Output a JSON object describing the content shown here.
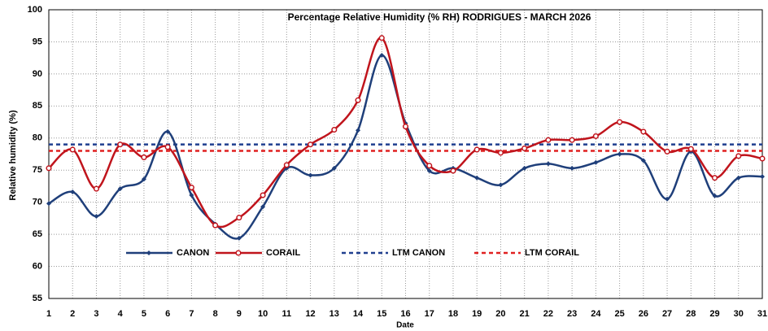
{
  "chart_data": {
    "type": "line",
    "title": "Percentage Relative Humidity (% RH) RODRIGUES - MARCH 2026",
    "x_label": "Date",
    "y_label": "Relative humidity (%)",
    "x": [
      1,
      2,
      3,
      4,
      5,
      6,
      7,
      8,
      9,
      10,
      11,
      12,
      13,
      14,
      15,
      16,
      17,
      18,
      19,
      20,
      21,
      22,
      23,
      24,
      25,
      26,
      27,
      28,
      29,
      30,
      31
    ],
    "series": [
      {
        "name": "CANON",
        "color": "#1f3f7a",
        "values": [
          69.8,
          71.6,
          67.8,
          72.1,
          73.6,
          81.0,
          71.1,
          66.6,
          64.4,
          69.3,
          75.3,
          74.2,
          75.3,
          81.2,
          92.9,
          82.3,
          74.9,
          75.3,
          73.8,
          72.7,
          75.3,
          76.0,
          75.3,
          76.2,
          77.5,
          76.5,
          70.5,
          77.9,
          71.0,
          73.8,
          74.0
        ]
      },
      {
        "name": "CORAIL",
        "color": "#c0141c",
        "values": [
          75.3,
          78.2,
          72.1,
          79.0,
          77.0,
          78.6,
          72.3,
          66.4,
          67.6,
          71.1,
          75.8,
          79.0,
          81.3,
          85.9,
          95.6,
          81.8,
          75.7,
          74.9,
          78.2,
          77.7,
          78.4,
          79.7,
          79.7,
          80.3,
          82.5,
          81.0,
          77.9,
          78.3,
          73.8,
          77.2,
          76.8
        ]
      }
    ],
    "reference_lines": [
      {
        "name": "LTM CANON",
        "color": "#1f3f8f",
        "value": 79
      },
      {
        "name": "LTM CORAIL",
        "color": "#e02020",
        "value": 78
      }
    ],
    "xlim": [
      1,
      31
    ],
    "xticks": [
      1,
      2,
      3,
      4,
      5,
      6,
      7,
      8,
      9,
      10,
      11,
      12,
      13,
      14,
      15,
      16,
      17,
      18,
      19,
      20,
      21,
      22,
      23,
      24,
      25,
      26,
      27,
      28,
      29,
      30,
      31
    ],
    "ylim": [
      55,
      100
    ],
    "yticks": [
      55,
      60,
      65,
      70,
      75,
      80,
      85,
      90,
      95,
      100
    ],
    "grid": true
  }
}
